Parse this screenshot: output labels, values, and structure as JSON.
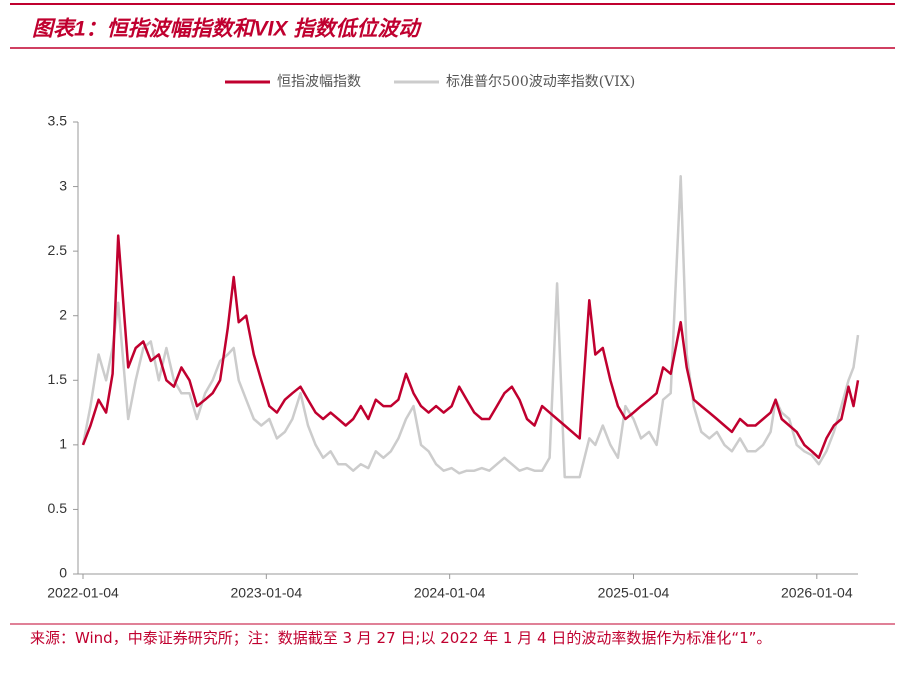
{
  "chart_data": {
    "type": "line",
    "title": "图表1：恒指波幅指数和VIX 指数低位波动",
    "source": "来源：Wind，中泰证券研究所；注：数据截至 3 月 27 日;以 2022 年 1 月 4 日的波动率数据作为标准化“1”。",
    "x": [
      "2022-01-04",
      "2022-01-19",
      "2022-02-04",
      "2022-02-19",
      "2022-03-04",
      "2022-03-15",
      "2022-04-04",
      "2022-04-19",
      "2022-05-04",
      "2022-05-19",
      "2022-06-04",
      "2022-06-19",
      "2022-07-04",
      "2022-07-19",
      "2022-08-04",
      "2022-08-19",
      "2022-09-04",
      "2022-09-19",
      "2022-10-04",
      "2022-10-19",
      "2022-10-31",
      "2022-11-10",
      "2022-11-25",
      "2022-12-10",
      "2022-12-25",
      "2023-01-10",
      "2023-01-25",
      "2023-02-10",
      "2023-02-25",
      "2023-03-13",
      "2023-03-28",
      "2023-04-12",
      "2023-04-27",
      "2023-05-12",
      "2023-05-27",
      "2023-06-11",
      "2023-06-26",
      "2023-07-11",
      "2023-07-26",
      "2023-08-10",
      "2023-08-25",
      "2023-09-09",
      "2023-09-24",
      "2023-10-09",
      "2023-10-24",
      "2023-11-08",
      "2023-11-23",
      "2023-12-08",
      "2023-12-23",
      "2024-01-08",
      "2024-01-23",
      "2024-02-07",
      "2024-02-22",
      "2024-03-08",
      "2024-03-23",
      "2024-04-07",
      "2024-04-22",
      "2024-05-07",
      "2024-05-22",
      "2024-06-06",
      "2024-06-21",
      "2024-07-06",
      "2024-07-21",
      "2024-08-05",
      "2024-08-20",
      "2024-09-04",
      "2024-09-19",
      "2024-10-08",
      "2024-10-20",
      "2024-11-04",
      "2024-11-19",
      "2024-12-04",
      "2024-12-19",
      "2025-01-04",
      "2025-01-19",
      "2025-02-04",
      "2025-02-19",
      "2025-03-04",
      "2025-03-19",
      "2025-04-08",
      "2025-04-20",
      "2025-05-04",
      "2025-05-19",
      "2025-06-04",
      "2025-06-19",
      "2025-07-04",
      "2025-07-19",
      "2025-08-04",
      "2025-08-19",
      "2025-09-04",
      "2025-09-19",
      "2025-10-04",
      "2025-10-14",
      "2025-10-26",
      "2025-11-10",
      "2025-11-25",
      "2025-12-10",
      "2025-12-25",
      "2026-01-08",
      "2026-01-23",
      "2026-02-07",
      "2026-02-22",
      "2026-03-08",
      "2026-03-18",
      "2026-03-27"
    ],
    "series": [
      {
        "name": "恒指波幅指数",
        "color": "#c0002f",
        "values": [
          1.0,
          1.15,
          1.35,
          1.25,
          1.55,
          2.62,
          1.6,
          1.75,
          1.8,
          1.65,
          1.7,
          1.5,
          1.45,
          1.6,
          1.5,
          1.3,
          1.35,
          1.4,
          1.5,
          1.9,
          2.3,
          1.95,
          2.0,
          1.7,
          1.5,
          1.3,
          1.25,
          1.35,
          1.4,
          1.45,
          1.35,
          1.25,
          1.2,
          1.25,
          1.2,
          1.15,
          1.2,
          1.3,
          1.2,
          1.35,
          1.3,
          1.3,
          1.35,
          1.55,
          1.4,
          1.3,
          1.25,
          1.3,
          1.25,
          1.3,
          1.45,
          1.35,
          1.25,
          1.2,
          1.2,
          1.3,
          1.4,
          1.45,
          1.35,
          1.2,
          1.15,
          1.3,
          1.25,
          1.2,
          1.15,
          1.1,
          1.05,
          2.12,
          1.7,
          1.75,
          1.5,
          1.3,
          1.2,
          1.25,
          1.3,
          1.35,
          1.4,
          1.6,
          1.55,
          1.95,
          1.6,
          1.35,
          1.3,
          1.25,
          1.2,
          1.15,
          1.1,
          1.2,
          1.15,
          1.15,
          1.2,
          1.25,
          1.35,
          1.2,
          1.15,
          1.1,
          1.0,
          0.95,
          0.9,
          1.05,
          1.15,
          1.2,
          1.45,
          1.3,
          1.5
        ]
      },
      {
        "name": "标准普尔500波动率指数(VIX)",
        "color": "#cccccc",
        "values": [
          1.0,
          1.3,
          1.7,
          1.5,
          1.75,
          2.1,
          1.2,
          1.5,
          1.75,
          1.8,
          1.5,
          1.75,
          1.5,
          1.4,
          1.4,
          1.2,
          1.4,
          1.5,
          1.65,
          1.7,
          1.75,
          1.5,
          1.35,
          1.2,
          1.15,
          1.2,
          1.05,
          1.1,
          1.2,
          1.4,
          1.15,
          1.0,
          0.9,
          0.95,
          0.85,
          0.85,
          0.8,
          0.85,
          0.82,
          0.95,
          0.9,
          0.95,
          1.05,
          1.2,
          1.3,
          1.0,
          0.95,
          0.85,
          0.8,
          0.82,
          0.78,
          0.8,
          0.8,
          0.82,
          0.8,
          0.85,
          0.9,
          0.85,
          0.8,
          0.82,
          0.8,
          0.8,
          0.9,
          2.25,
          0.75,
          0.75,
          0.75,
          1.05,
          1.0,
          1.15,
          1.0,
          0.9,
          1.3,
          1.2,
          1.05,
          1.1,
          1.0,
          1.35,
          1.4,
          3.08,
          1.7,
          1.3,
          1.1,
          1.05,
          1.1,
          1.0,
          0.95,
          1.05,
          0.95,
          0.95,
          1.0,
          1.1,
          1.35,
          1.25,
          1.2,
          1.0,
          0.95,
          0.92,
          0.85,
          0.95,
          1.1,
          1.3,
          1.5,
          1.6,
          1.85
        ]
      }
    ],
    "xlim": [
      "2022-01-04",
      "2026-03-27"
    ],
    "xticks": [
      "2022-01-04",
      "2023-01-04",
      "2024-01-04",
      "2025-01-04",
      "2026-01-04"
    ],
    "ylim": [
      0,
      3.5
    ],
    "yticks": [
      0,
      0.5,
      1,
      1.5,
      2,
      2.5,
      3,
      3.5
    ],
    "legend": "top"
  }
}
